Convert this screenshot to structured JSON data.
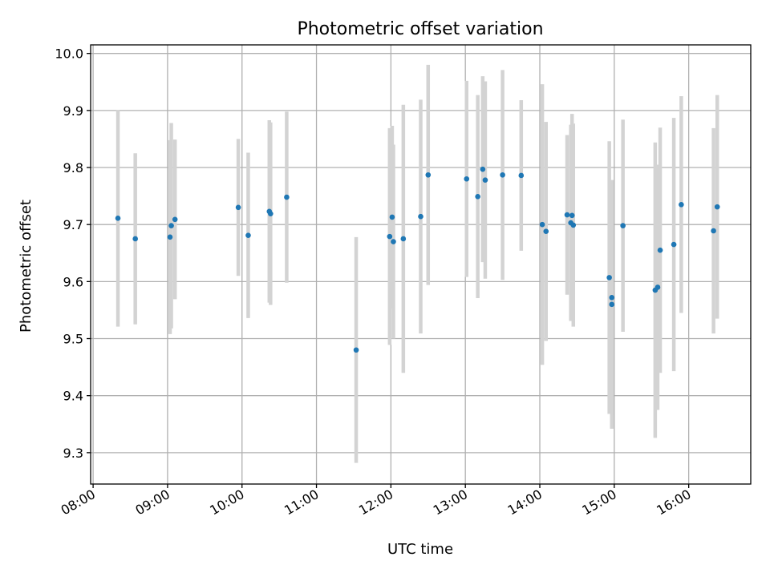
{
  "chart_data": {
    "type": "scatter",
    "title": "Photometric offset variation",
    "xlabel": "UTC time",
    "ylabel": "Photometric offset",
    "x_range": [
      "07:58",
      "16:50"
    ],
    "ylim": [
      9.245,
      10.015
    ],
    "x_tick_labels": [
      "08:00",
      "09:00",
      "10:00",
      "11:00",
      "12:00",
      "13:00",
      "14:00",
      "15:00",
      "16:00"
    ],
    "y_tick_labels": [
      "9.3",
      "9.4",
      "9.5",
      "9.6",
      "9.7",
      "9.8",
      "9.9",
      "10.0"
    ],
    "grid": true,
    "marker_color": "#1f77b4",
    "errorbar_color": "#d3d3d3",
    "points": [
      {
        "time": "08:20",
        "y": 9.711,
        "err": 0.19
      },
      {
        "time": "08:34",
        "y": 9.675,
        "err": 0.15
      },
      {
        "time": "09:02",
        "y": 9.678,
        "err": 0.17
      },
      {
        "time": "09:03",
        "y": 9.698,
        "err": 0.18
      },
      {
        "time": "09:06",
        "y": 9.709,
        "err": 0.14
      },
      {
        "time": "09:57",
        "y": 9.73,
        "err": 0.12
      },
      {
        "time": "10:05",
        "y": 9.681,
        "err": 0.145
      },
      {
        "time": "10:22",
        "y": 9.723,
        "err": 0.16
      },
      {
        "time": "10:23",
        "y": 9.719,
        "err": 0.16
      },
      {
        "time": "10:36",
        "y": 9.748,
        "err": 0.15
      },
      {
        "time": "11:32",
        "y": 9.48,
        "err": 0.198
      },
      {
        "time": "11:59",
        "y": 9.679,
        "err": 0.19
      },
      {
        "time": "12:01",
        "y": 9.713,
        "err": 0.16
      },
      {
        "time": "12:02",
        "y": 9.67,
        "err": 0.17
      },
      {
        "time": "12:10",
        "y": 9.675,
        "err": 0.235
      },
      {
        "time": "12:24",
        "y": 9.714,
        "err": 0.205
      },
      {
        "time": "12:30",
        "y": 9.787,
        "err": 0.193
      },
      {
        "time": "13:01",
        "y": 9.78,
        "err": 0.172
      },
      {
        "time": "13:10",
        "y": 9.749,
        "err": 0.178
      },
      {
        "time": "13:14",
        "y": 9.797,
        "err": 0.163
      },
      {
        "time": "13:16",
        "y": 9.778,
        "err": 0.173
      },
      {
        "time": "13:30",
        "y": 9.787,
        "err": 0.184
      },
      {
        "time": "13:45",
        "y": 9.786,
        "err": 0.132
      },
      {
        "time": "14:02",
        "y": 9.7,
        "err": 0.246
      },
      {
        "time": "14:05",
        "y": 9.688,
        "err": 0.192
      },
      {
        "time": "14:22",
        "y": 9.717,
        "err": 0.14
      },
      {
        "time": "14:25",
        "y": 9.703,
        "err": 0.172
      },
      {
        "time": "14:26",
        "y": 9.716,
        "err": 0.178
      },
      {
        "time": "14:27",
        "y": 9.699,
        "err": 0.178
      },
      {
        "time": "14:56",
        "y": 9.607,
        "err": 0.239
      },
      {
        "time": "14:58",
        "y": 9.56,
        "err": 0.218
      },
      {
        "time": "14:58",
        "y": 9.572,
        "err": 0.205
      },
      {
        "time": "15:07",
        "y": 9.698,
        "err": 0.186
      },
      {
        "time": "15:33",
        "y": 9.585,
        "err": 0.259
      },
      {
        "time": "15:35",
        "y": 9.59,
        "err": 0.215
      },
      {
        "time": "15:37",
        "y": 9.655,
        "err": 0.215
      },
      {
        "time": "15:48",
        "y": 9.665,
        "err": 0.222
      },
      {
        "time": "15:54",
        "y": 9.735,
        "err": 0.19
      },
      {
        "time": "16:20",
        "y": 9.689,
        "err": 0.18
      },
      {
        "time": "16:23",
        "y": 9.731,
        "err": 0.196
      }
    ]
  }
}
